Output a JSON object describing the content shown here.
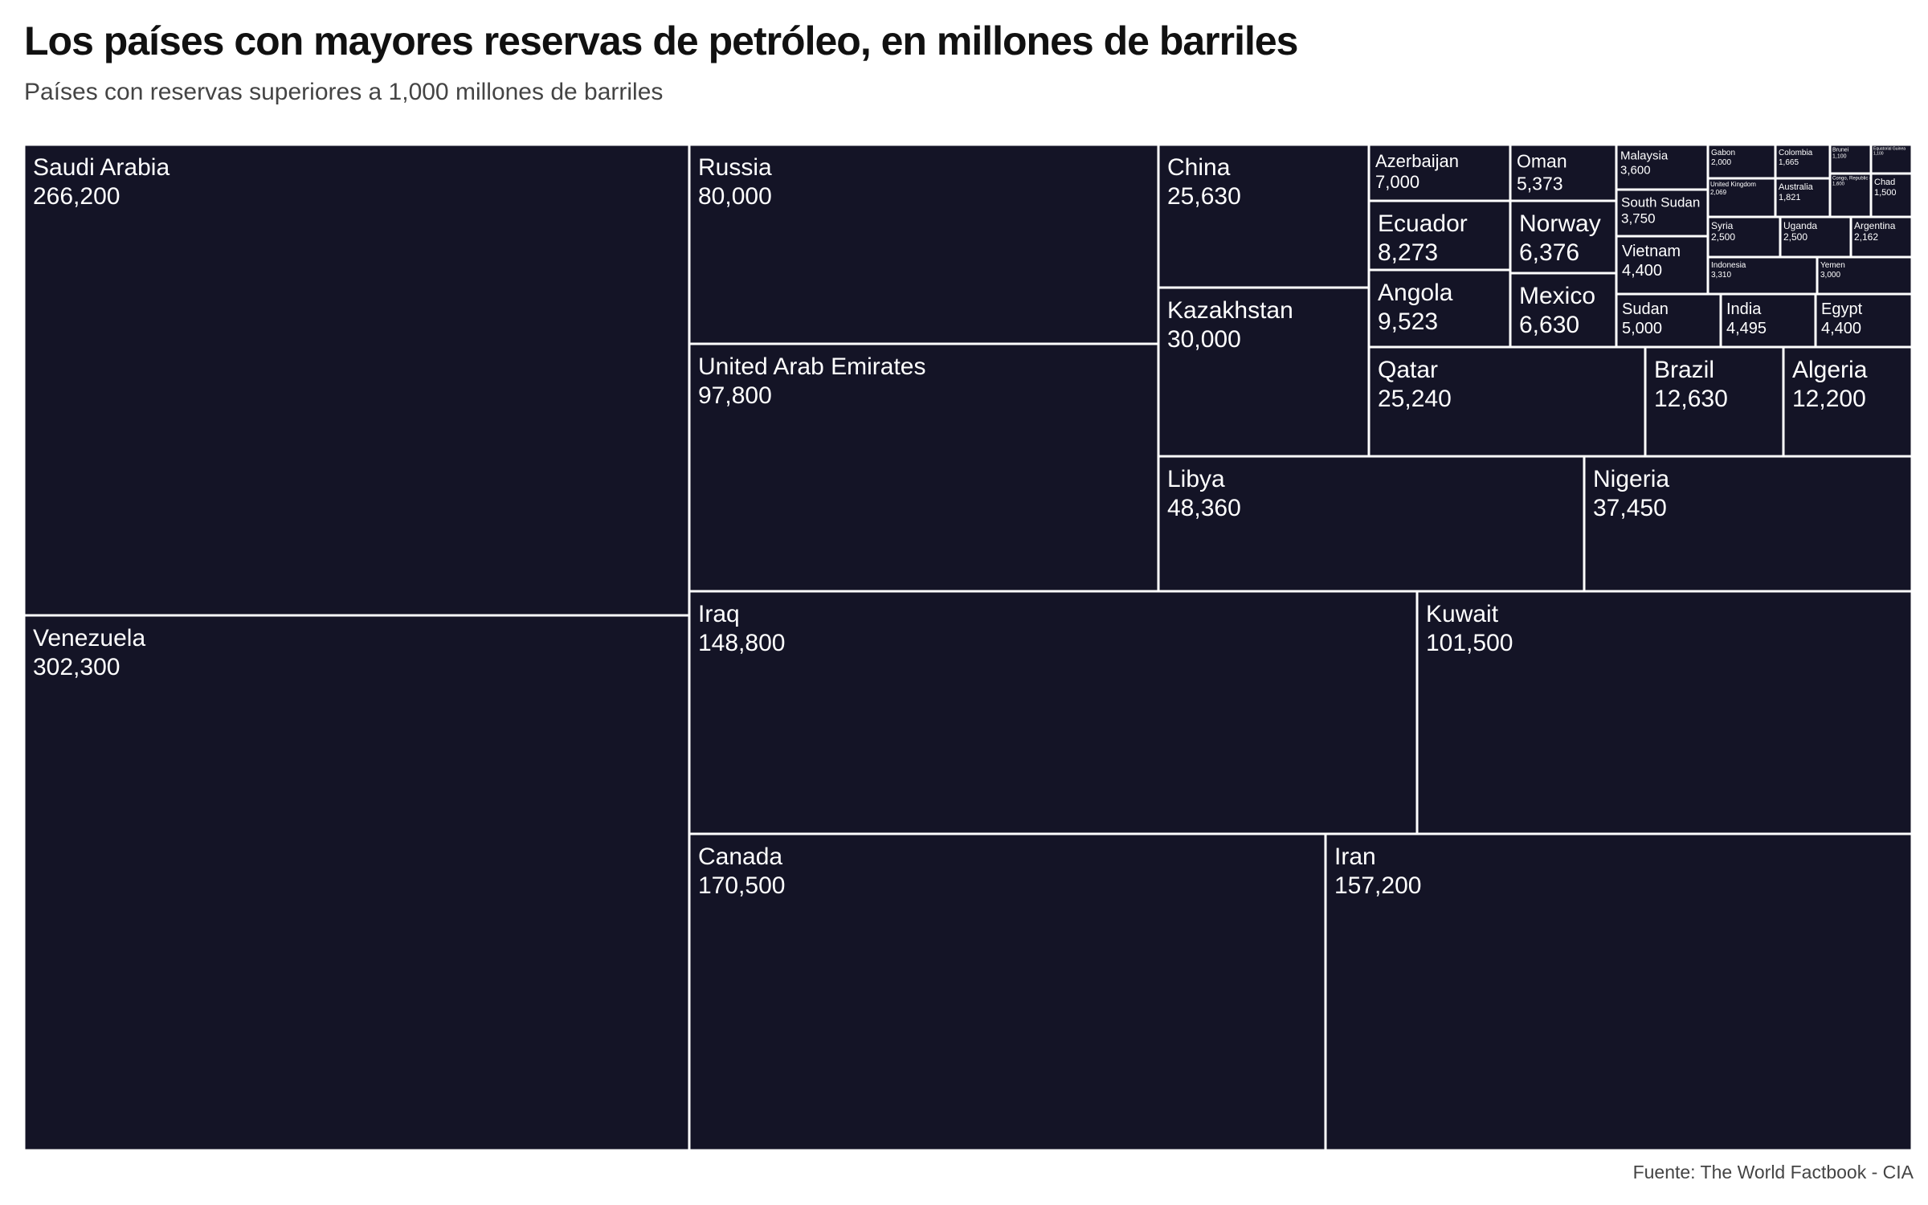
{
  "title": "Los países con mayores reservas de petróleo, en millones de barriles",
  "subtitle": "Países con reservas superiores a 1,000 millones de barriles",
  "source": "Fuente: The World Factbook - CIA",
  "colors": {
    "tile": "#141426",
    "border": "#ffffff",
    "text": "#ffffff"
  },
  "chart_data": {
    "type": "treemap",
    "unit": "millones de barriles",
    "items": [
      {
        "name": "Saudi Arabia",
        "value": 266200,
        "label": "266,200"
      },
      {
        "name": "Venezuela",
        "value": 302300,
        "label": "302,300"
      },
      {
        "name": "Russia",
        "value": 80000,
        "label": "80,000"
      },
      {
        "name": "United Arab Emirates",
        "value": 97800,
        "label": "97,800"
      },
      {
        "name": "China",
        "value": 25630,
        "label": "25,630"
      },
      {
        "name": "Kazakhstan",
        "value": 30000,
        "label": "30,000"
      },
      {
        "name": "Azerbaijan",
        "value": 7000,
        "label": "7,000"
      },
      {
        "name": "Ecuador",
        "value": 8273,
        "label": "8,273"
      },
      {
        "name": "Angola",
        "value": 9523,
        "label": "9,523"
      },
      {
        "name": "Oman",
        "value": 5373,
        "label": "5,373"
      },
      {
        "name": "Norway",
        "value": 6376,
        "label": "6,376"
      },
      {
        "name": "Mexico",
        "value": 6630,
        "label": "6,630"
      },
      {
        "name": "Malaysia",
        "value": 3600,
        "label": "3,600"
      },
      {
        "name": "South Sudan",
        "value": 3750,
        "label": "3,750"
      },
      {
        "name": "Vietnam",
        "value": 4400,
        "label": "4,400"
      },
      {
        "name": "Gabon",
        "value": 2000,
        "label": "2,000"
      },
      {
        "name": "Colombia",
        "value": 1665,
        "label": "1,665"
      },
      {
        "name": "Brunei",
        "value": 1100,
        "label": "1,100"
      },
      {
        "name": "Equatorial Guinea",
        "value": 1100,
        "label": "1,100"
      },
      {
        "name": "United Kingdom",
        "value": 2069,
        "label": "2,069"
      },
      {
        "name": "Australia",
        "value": 1821,
        "label": "1,821"
      },
      {
        "name": "Congo, Republic of the",
        "value": 1600,
        "label": "1,600"
      },
      {
        "name": "Chad",
        "value": 1500,
        "label": "1,500"
      },
      {
        "name": "Syria",
        "value": 2500,
        "label": "2,500"
      },
      {
        "name": "Uganda",
        "value": 2500,
        "label": "2,500"
      },
      {
        "name": "Argentina",
        "value": 2162,
        "label": "2,162"
      },
      {
        "name": "Indonesia",
        "value": 3310,
        "label": "3,310"
      },
      {
        "name": "Yemen",
        "value": 3000,
        "label": "3,000"
      },
      {
        "name": "Sudan",
        "value": 5000,
        "label": "5,000"
      },
      {
        "name": "India",
        "value": 4495,
        "label": "4,495"
      },
      {
        "name": "Egypt",
        "value": 4400,
        "label": "4,400"
      },
      {
        "name": "Qatar",
        "value": 25240,
        "label": "25,240"
      },
      {
        "name": "Brazil",
        "value": 12630,
        "label": "12,630"
      },
      {
        "name": "Algeria",
        "value": 12200,
        "label": "12,200"
      },
      {
        "name": "Libya",
        "value": 48360,
        "label": "48,360"
      },
      {
        "name": "Nigeria",
        "value": 37450,
        "label": "37,450"
      },
      {
        "name": "Iraq",
        "value": 148800,
        "label": "148,800"
      },
      {
        "name": "Kuwait",
        "value": 101500,
        "label": "101,500"
      },
      {
        "name": "Canada",
        "value": 170500,
        "label": "170,500"
      },
      {
        "name": "Iran",
        "value": 157200,
        "label": "157,200"
      }
    ]
  }
}
